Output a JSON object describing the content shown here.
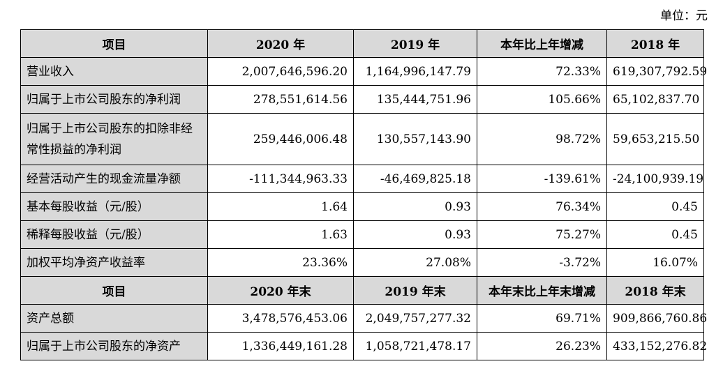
{
  "unit_label": "单位：元",
  "header1": [
    "项目",
    "2020 年",
    "2019 年",
    "本年比上年增减",
    "2018 年"
  ],
  "rows1": [
    [
      "营业收入",
      "2,007,646,596.20",
      "1,164,996,147.79",
      "72.33%",
      "619,307,792.59"
    ],
    [
      "归属于上市公司股东的净利润",
      "278,551,614.56",
      "135,444,751.96",
      "105.66%",
      "65,102,837.70"
    ],
    [
      "归属于上市公司股东的扣除非经常性损益的净利润",
      "259,446,006.48",
      "130,557,143.90",
      "98.72%",
      "59,653,215.50"
    ],
    [
      "经营活动产生的现金流量净额",
      "-111,344,963.33",
      "-46,469,825.18",
      "-139.61%",
      "-24,100,939.19"
    ],
    [
      "基本每股收益（元/股）",
      "1.64",
      "0.93",
      "76.34%",
      "0.45"
    ],
    [
      "稀释每股收益（元/股）",
      "1.63",
      "0.93",
      "75.27%",
      "0.45"
    ],
    [
      "加权平均净资产收益率",
      "23.36%",
      "27.08%",
      "-3.72%",
      "16.07%"
    ]
  ],
  "header2": [
    "项目",
    "2020 年末",
    "2019 年末",
    "本年末比上年末增减",
    "2018 年末"
  ],
  "rows2": [
    [
      "资产总额",
      "3,478,576,453.06",
      "2,049,757,277.32",
      "69.71%",
      "909,866,760.86"
    ],
    [
      "归属于上市公司股东的净资产",
      "1,336,449,161.28",
      "1,058,721,478.17",
      "26.23%",
      "433,152,276.82"
    ]
  ]
}
